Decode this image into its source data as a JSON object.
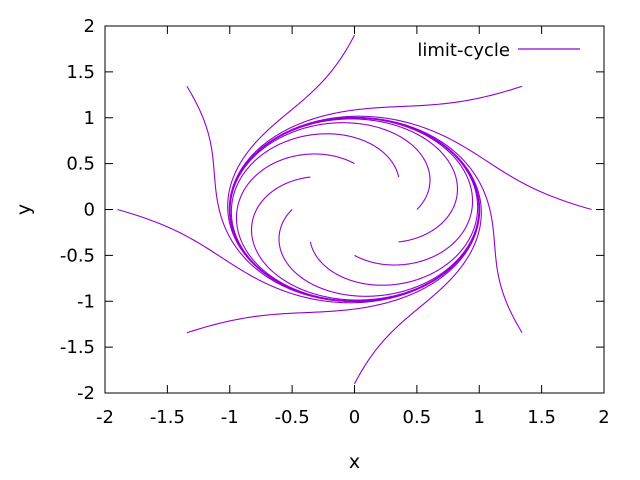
{
  "chart_data": {
    "type": "line",
    "title": "",
    "xlabel": "x",
    "ylabel": "y",
    "xlim": [
      -2,
      2
    ],
    "ylim": [
      -2,
      2
    ],
    "xticks": [
      "-2",
      "-1.5",
      "-1",
      "-0.5",
      "0",
      "0.5",
      "1",
      "1.5",
      "2"
    ],
    "yticks": [
      "-2",
      "-1.5",
      "-1",
      "-0.5",
      "0",
      "0.5",
      "1",
      "1.5",
      "2"
    ],
    "grid": false,
    "legend_position": "top-right",
    "series_color": "#9400d3",
    "series": [
      {
        "name": "limit-cycle",
        "model": "r' = r(1 - r^2), theta' = 1",
        "trajectories": [
          {
            "r0": 1.9,
            "theta0_deg": 90,
            "t_max": 8
          },
          {
            "r0": 1.9,
            "theta0_deg": 0,
            "t_max": 8
          },
          {
            "r0": 1.9,
            "theta0_deg": 180,
            "t_max": 8
          },
          {
            "r0": 1.9,
            "theta0_deg": 270,
            "t_max": 8
          },
          {
            "r0": 1.9,
            "theta0_deg": 45,
            "t_max": 8
          },
          {
            "r0": 1.9,
            "theta0_deg": 135,
            "t_max": 8
          },
          {
            "r0": 1.9,
            "theta0_deg": 225,
            "t_max": 8
          },
          {
            "r0": 1.9,
            "theta0_deg": 315,
            "t_max": 8
          },
          {
            "r0": 0.5,
            "theta0_deg": 90,
            "t_max": 8
          },
          {
            "r0": 0.5,
            "theta0_deg": 0,
            "t_max": 8
          },
          {
            "r0": 0.5,
            "theta0_deg": 180,
            "t_max": 8
          },
          {
            "r0": 0.5,
            "theta0_deg": 270,
            "t_max": 8
          },
          {
            "r0": 0.5,
            "theta0_deg": 45,
            "t_max": 8
          },
          {
            "r0": 0.5,
            "theta0_deg": 135,
            "t_max": 8
          },
          {
            "r0": 0.5,
            "theta0_deg": 225,
            "t_max": 8
          },
          {
            "r0": 0.5,
            "theta0_deg": 315,
            "t_max": 8
          }
        ]
      }
    ]
  }
}
